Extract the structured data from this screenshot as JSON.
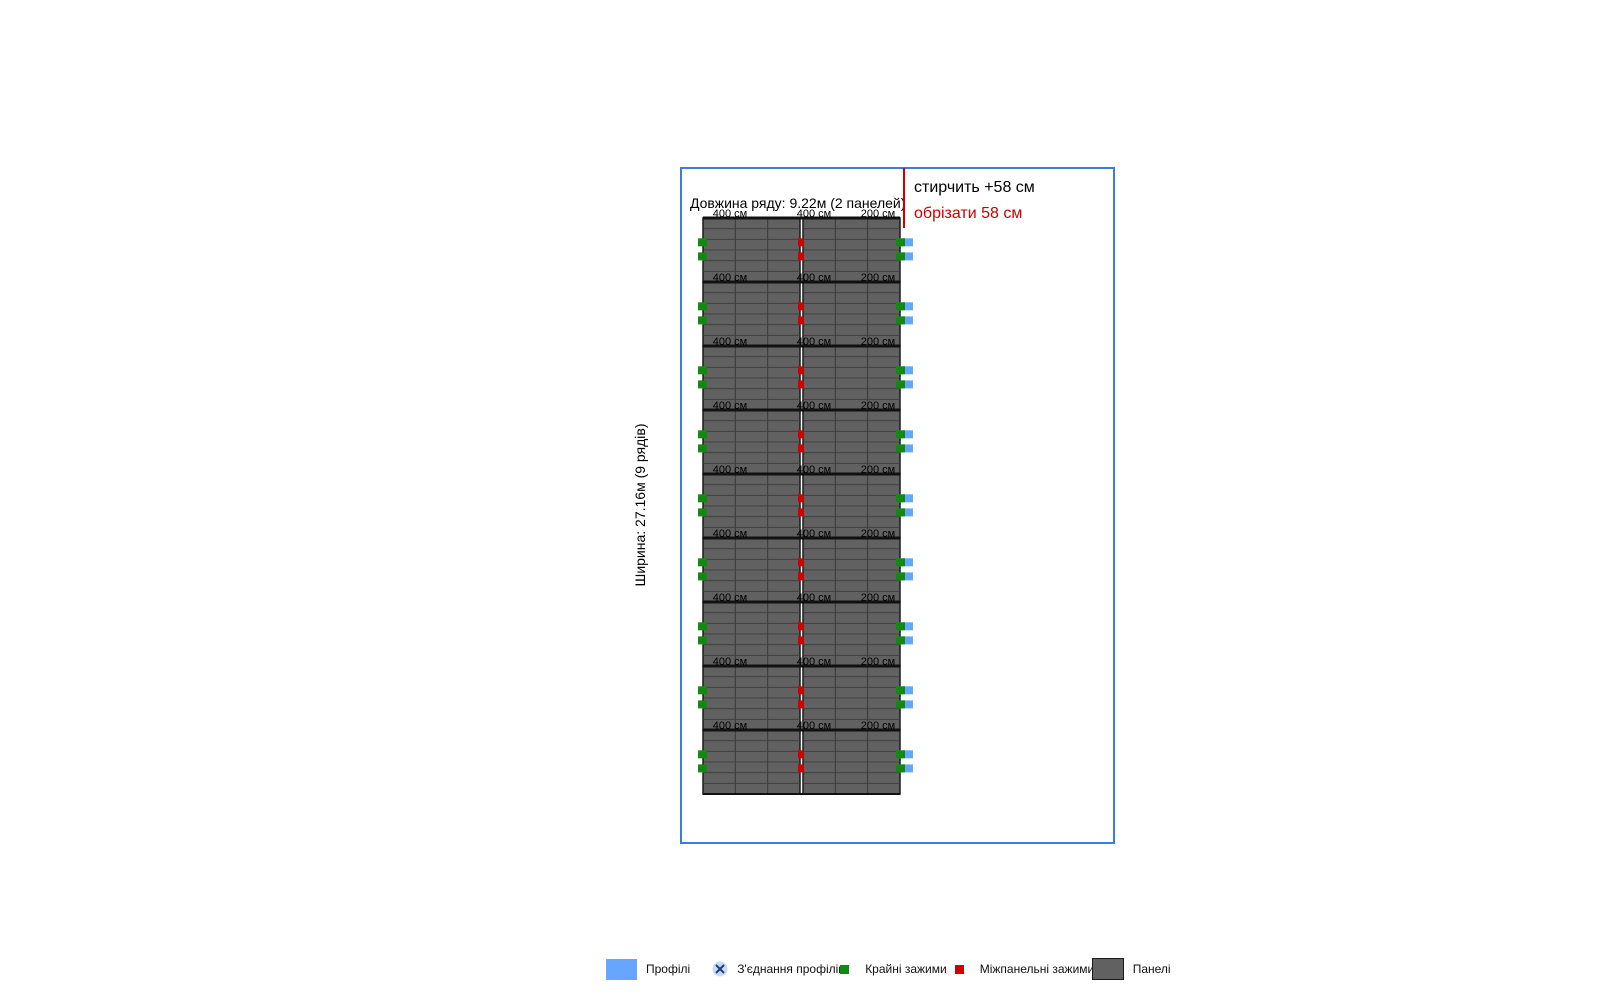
{
  "diagram": {
    "row_length_label": "Довжина ряду: 9.22м (2 панелей)",
    "width_label": "Ширина: 27.16м (9 рядів)",
    "overhang_label": "стирчить +58 см",
    "cut_label": "обрізати 58 см",
    "profile_segment_labels": [
      "400 см",
      "400 см",
      "200 см"
    ],
    "rows": 9,
    "panels_per_row": 2
  },
  "legend": {
    "items": [
      {
        "label": "Профілі",
        "icon": "profile-swatch"
      },
      {
        "label": "З'єднання профілів",
        "icon": "joint-x-icon"
      },
      {
        "label": "Крайні зажими",
        "icon": "edge-clamp-swatch"
      },
      {
        "label": "Міжпанельні зажими",
        "icon": "mid-clamp-swatch"
      },
      {
        "label": "Панелі",
        "icon": "panel-swatch"
      }
    ]
  },
  "colors": {
    "frame": "#3b7ddd",
    "panel": "#616161",
    "profile": "#66a6ff",
    "edge_clamp": "#128a12",
    "mid_clamp": "#d00000",
    "cut_line": "#cc0000"
  }
}
